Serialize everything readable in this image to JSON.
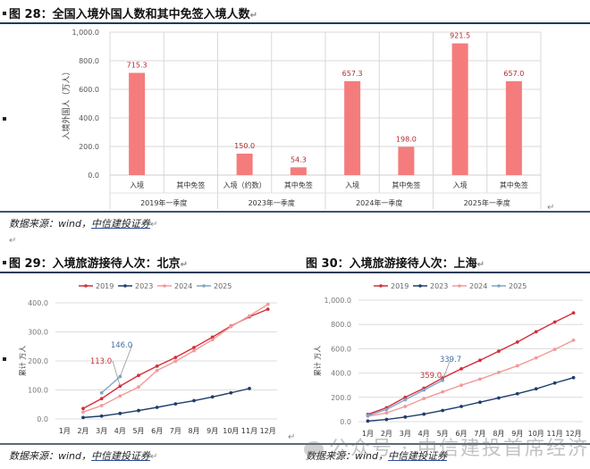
{
  "fig28": {
    "title": "图 28：全国入境外国人数和其中免签入境人数",
    "source_prefix": "数据来源：wind，",
    "source_org": "中信建投证券"
  },
  "fig29": {
    "title": "图 29：入境旅游接待人次：北京",
    "source_prefix": "数据来源：wind，",
    "source_org": "中信建投证券"
  },
  "fig30": {
    "title": "图 30：入境旅游接待人次：上海",
    "source_prefix": "数据来源：wind，",
    "source_org": "中信建投证券"
  },
  "watermark": "公众号 · 中信建投首席经济学家",
  "chart_data": [
    {
      "id": "fig28",
      "type": "bar",
      "title": "全国入境外国人数和其中免签入境人数",
      "ylabel": "入境外国人（万人）",
      "ylim": [
        0,
        1000
      ],
      "yticks": [
        "0.0",
        "200.0",
        "400.0",
        "600.0",
        "800.0",
        "1,000.0"
      ],
      "grid": true,
      "color": "#f47c7c",
      "groups": [
        "2019年一季度",
        "2023年一季度",
        "2024年一季度",
        "2025年一季度"
      ],
      "categories": [
        "入境",
        "其中免签",
        "入境（约数）",
        "其中免签",
        "入境",
        "其中免签",
        "入境",
        "其中免签"
      ],
      "values": [
        715.3,
        null,
        150.0,
        54.3,
        657.3,
        198.0,
        921.5,
        657.0
      ],
      "labels": [
        "715.3",
        "",
        "150.0",
        "54.3",
        "657.3",
        "198.0",
        "921.5",
        "657.0"
      ]
    },
    {
      "id": "fig29",
      "type": "line",
      "title": "入境旅游接待人次：北京",
      "ylabel": "累计 万人",
      "ylim": [
        0,
        400
      ],
      "yticks": [
        "0.0",
        "100.0",
        "200.0",
        "300.0",
        "400.0"
      ],
      "grid": true,
      "legend_position": "top",
      "x": [
        "1月",
        "2月",
        "3月",
        "4月",
        "5月",
        "6月",
        "7月",
        "8月",
        "9月",
        "10月",
        "11月",
        "12月"
      ],
      "series": [
        {
          "name": "2019",
          "color": "#d32f3a",
          "values": [
            null,
            36,
            70,
            113,
            150,
            182,
            212,
            246,
            282,
            320,
            352,
            378
          ]
        },
        {
          "name": "2023",
          "color": "#1f3d6b",
          "values": [
            null,
            5,
            10,
            19,
            29,
            40,
            52,
            63,
            76,
            90,
            105,
            null
          ]
        },
        {
          "name": "2024",
          "color": "#f29a9a",
          "values": [
            null,
            24,
            46,
            79,
            110,
            167,
            199,
            235,
            273,
            318,
            355,
            395
          ]
        },
        {
          "name": "2025",
          "color": "#7fa6c8",
          "values": [
            null,
            null,
            90,
            146.0,
            null,
            null,
            null,
            null,
            null,
            null,
            null,
            null
          ]
        }
      ],
      "annotations": [
        {
          "text": "146.0",
          "series": "2025",
          "x": "4月",
          "color": "#3f6fa8"
        },
        {
          "text": "113.0",
          "series": "2019",
          "x": "4月",
          "color": "#c0303a"
        }
      ]
    },
    {
      "id": "fig30",
      "type": "line",
      "title": "入境旅游接待人次：上海",
      "ylabel": "累计 万人",
      "ylim": [
        0,
        1000
      ],
      "yticks": [
        "0.0",
        "200.0",
        "400.0",
        "600.0",
        "800.0",
        "1,000.0"
      ],
      "grid": true,
      "legend_position": "top",
      "x": [
        "1月",
        "2月",
        "3月",
        "4月",
        "5月",
        "6月",
        "7月",
        "8月",
        "9月",
        "10月",
        "11月",
        "12月"
      ],
      "series": [
        {
          "name": "2019",
          "color": "#d32f3a",
          "values": [
            60,
            115,
            200,
            275,
            359.0,
            435,
            505,
            580,
            655,
            740,
            820,
            895
          ]
        },
        {
          "name": "2023",
          "color": "#1f3d6b",
          "values": [
            5,
            18,
            38,
            62,
            92,
            125,
            160,
            195,
            230,
            270,
            318,
            362
          ]
        },
        {
          "name": "2024",
          "color": "#f29a9a",
          "values": [
            45,
            72,
            125,
            190,
            245,
            300,
            350,
            405,
            460,
            525,
            595,
            670
          ]
        },
        {
          "name": "2025",
          "color": "#7fa6c8",
          "values": [
            50,
            100,
            180,
            260,
            339.7,
            null,
            null,
            null,
            null,
            null,
            null,
            null
          ]
        }
      ],
      "annotations": [
        {
          "text": "339.7",
          "series": "2025",
          "x": "5月",
          "color": "#3f6fa8"
        },
        {
          "text": "359.0",
          "series": "2019",
          "x": "5月",
          "color": "#c0303a"
        }
      ]
    }
  ]
}
